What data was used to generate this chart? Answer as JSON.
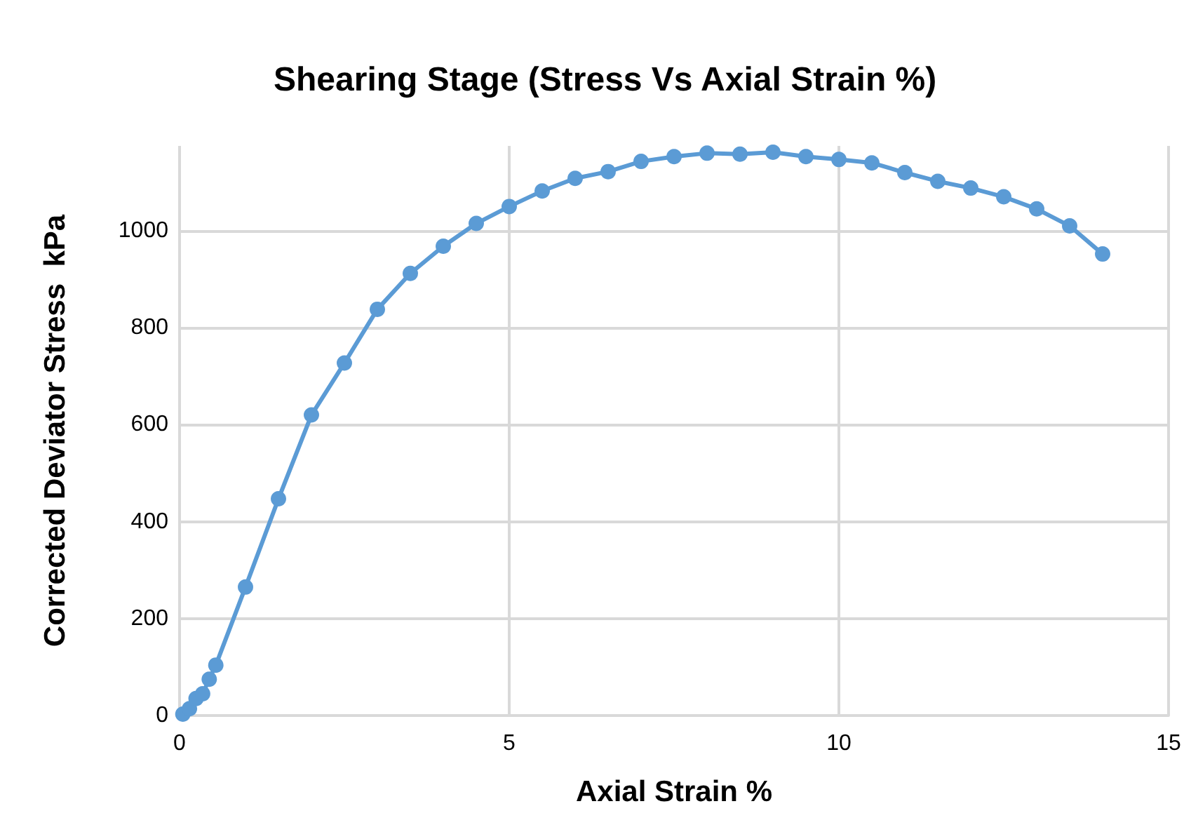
{
  "chart_data": {
    "type": "line",
    "title": "Shearing Stage (Stress Vs Axial Strain %)",
    "xlabel": "Axial Strain %",
    "ylabel": "Corrected Deviator Stress  kPa",
    "x": [
      0.05,
      0.15,
      0.25,
      0.35,
      0.45,
      0.55,
      1.0,
      1.5,
      2.0,
      2.5,
      3.0,
      3.5,
      4.0,
      4.5,
      5.0,
      5.5,
      6.0,
      6.5,
      7.0,
      7.5,
      8.0,
      8.5,
      9.0,
      9.5,
      10.0,
      10.5,
      11.0,
      11.5,
      12.0,
      12.5,
      13.0,
      13.5,
      14.0
    ],
    "series": [
      {
        "color": "#5b9bd5",
        "values": [
          3,
          14,
          35,
          45,
          75,
          104,
          265,
          447,
          620,
          727,
          838,
          912,
          968,
          1015,
          1050,
          1082,
          1108,
          1122,
          1143,
          1153,
          1160,
          1158,
          1162,
          1153,
          1147,
          1140,
          1120,
          1102,
          1088,
          1070,
          1045,
          1010,
          952
        ]
      }
    ],
    "xlim": [
      0,
      15
    ],
    "xticks": [
      0,
      5,
      10,
      15
    ],
    "ylim": [
      0,
      1175
    ],
    "yticks": [
      0,
      200,
      400,
      600,
      800,
      1000
    ],
    "grid": true,
    "marker": "circle",
    "line_style": "solid"
  }
}
